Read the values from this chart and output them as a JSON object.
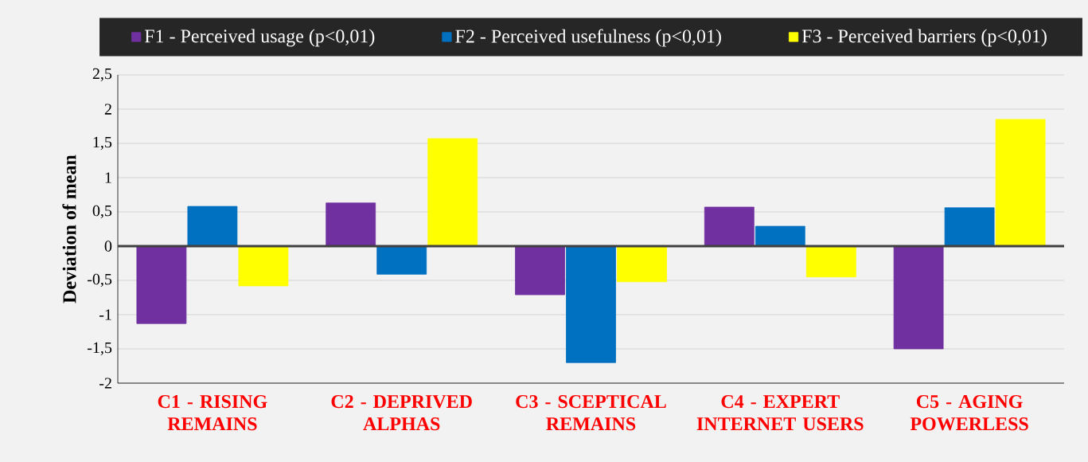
{
  "chart_data": {
    "type": "bar",
    "ylabel": "Deviation of mean",
    "categories": [
      "C1 - RISING REMAINS",
      "C2 - DEPRIVED ALPHAS",
      "C3 - SCEPTICAL REMAINS",
      "C4 - EXPERT INTERNET USERS",
      "C5 - AGING POWERLESS"
    ],
    "series": [
      {
        "name": "F1 - Perceived usage (p<0,01)",
        "color": "#7030a0",
        "values": [
          -1.13,
          0.63,
          -0.71,
          0.57,
          -1.5
        ]
      },
      {
        "name": "F2 - Perceived usefulness (p<0,01)",
        "color": "#0070c0",
        "values": [
          0.58,
          -0.41,
          -1.7,
          0.29,
          0.56
        ]
      },
      {
        "name": "F3 - Perceived barriers (p<0,01)",
        "color": "#ffff00",
        "values": [
          -0.58,
          1.57,
          -0.52,
          -0.45,
          1.85
        ]
      }
    ],
    "ylim": [
      -2,
      2.5
    ],
    "yticks": [
      -2,
      {
        "value": -1.5,
        "label": "-1,5"
      },
      -1,
      {
        "value": -0.5,
        "label": "-0,5"
      },
      0,
      {
        "value": 0.5,
        "label": "0,5"
      },
      1,
      {
        "value": 1.5,
        "label": "1,5"
      },
      2,
      {
        "value": 2.5,
        "label": "2,5"
      }
    ],
    "grid": "y",
    "legend": "top"
  }
}
